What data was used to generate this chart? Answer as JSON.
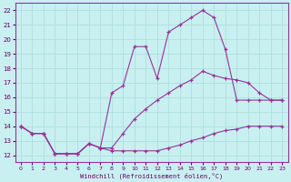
{
  "xlabel": "Windchill (Refroidissement éolien,°C)",
  "bg_color": "#c8f0f0",
  "grid_color": "#b0dede",
  "line_color": "#993399",
  "ylim": [
    11.5,
    22.5
  ],
  "xlim": [
    -0.5,
    23.5
  ],
  "yticks": [
    12,
    13,
    14,
    15,
    16,
    17,
    18,
    19,
    20,
    21,
    22
  ],
  "xticks": [
    0,
    1,
    2,
    3,
    4,
    5,
    6,
    7,
    8,
    9,
    10,
    11,
    12,
    13,
    14,
    15,
    16,
    17,
    18,
    19,
    20,
    21,
    22,
    23
  ],
  "line1_x": [
    0,
    1,
    2,
    3,
    4,
    5,
    6,
    7,
    8,
    9,
    10,
    11,
    12,
    13,
    14,
    15,
    16,
    17,
    18,
    19,
    20,
    21,
    22,
    23
  ],
  "line1_y": [
    14.0,
    13.5,
    13.5,
    12.1,
    12.1,
    12.1,
    12.8,
    12.5,
    12.3,
    12.3,
    12.3,
    12.3,
    12.3,
    12.5,
    12.7,
    13.0,
    13.2,
    13.5,
    13.7,
    13.8,
    14.0,
    14.0,
    14.0,
    14.0
  ],
  "line2_x": [
    0,
    1,
    2,
    3,
    4,
    5,
    6,
    7,
    8,
    9,
    10,
    11,
    12,
    13,
    14,
    15,
    16,
    17,
    18,
    19,
    20,
    21,
    22,
    23
  ],
  "line2_y": [
    14.0,
    13.5,
    13.5,
    12.1,
    12.1,
    12.1,
    12.8,
    12.5,
    16.3,
    16.8,
    19.5,
    19.5,
    17.3,
    20.5,
    21.0,
    21.5,
    22.0,
    21.5,
    19.3,
    15.8,
    15.8,
    15.8,
    15.8,
    15.8
  ],
  "line3_x": [
    0,
    1,
    2,
    3,
    4,
    5,
    6,
    7,
    8,
    9,
    10,
    11,
    12,
    13,
    14,
    15,
    16,
    17,
    18,
    19,
    20,
    21,
    22,
    23
  ],
  "line3_y": [
    14.0,
    13.5,
    13.5,
    12.1,
    12.1,
    12.1,
    12.8,
    12.5,
    12.5,
    13.5,
    14.5,
    15.2,
    15.8,
    16.3,
    16.8,
    17.2,
    17.8,
    17.5,
    17.3,
    17.2,
    17.0,
    16.3,
    15.8,
    15.8
  ]
}
